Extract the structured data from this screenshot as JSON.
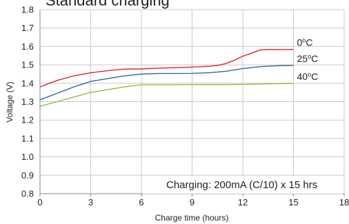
{
  "chart_data": {
    "type": "line",
    "title": "Standard charging",
    "xlabel": "Charge time (hours)",
    "ylabel": "Voltage (V)",
    "xlim": [
      0,
      18
    ],
    "ylim": [
      0.8,
      1.8
    ],
    "xticks": [
      0,
      3,
      6,
      9,
      12,
      15,
      18
    ],
    "yticks": [
      0.8,
      0.9,
      1.0,
      1.1,
      1.2,
      1.3,
      1.4,
      1.5,
      1.6,
      1.7,
      1.8
    ],
    "grid": true,
    "annotation": "Charging: 200mA (C/10) x 15 hrs",
    "colors": {
      "0": "#d9252a",
      "25": "#2f6a96",
      "40": "#8cbf3f",
      "grid": "#c8c8c8",
      "axis": "#888888"
    },
    "series": [
      {
        "name": "0°C",
        "label_main": "0",
        "label_unit": "C",
        "color": "#d9252a",
        "x": [
          0,
          1,
          2,
          3,
          4,
          5,
          6,
          7,
          8,
          9,
          10,
          10.5,
          11,
          11.5,
          12,
          12.5,
          13,
          13.5,
          14,
          15
        ],
        "y": [
          1.38,
          1.415,
          1.44,
          1.457,
          1.468,
          1.477,
          1.478,
          1.482,
          1.485,
          1.488,
          1.492,
          1.497,
          1.507,
          1.525,
          1.547,
          1.563,
          1.58,
          1.584,
          1.583,
          1.584
        ]
      },
      {
        "name": "25°C",
        "label_main": "25",
        "label_unit": "C",
        "color": "#2f6a96",
        "x": [
          0,
          1,
          2,
          3,
          4,
          5,
          6,
          7,
          8,
          9,
          10,
          11,
          12,
          13,
          14,
          15
        ],
        "y": [
          1.31,
          1.345,
          1.38,
          1.41,
          1.425,
          1.44,
          1.45,
          1.453,
          1.453,
          1.454,
          1.457,
          1.465,
          1.48,
          1.49,
          1.495,
          1.497
        ]
      },
      {
        "name": "40°C",
        "label_main": "40",
        "label_unit": "C",
        "color": "#8cbf3f",
        "x": [
          0,
          1,
          2,
          3,
          4,
          5,
          6,
          7,
          8,
          9,
          10,
          11,
          12,
          13,
          14,
          15
        ],
        "y": [
          1.275,
          1.3,
          1.325,
          1.35,
          1.365,
          1.38,
          1.392,
          1.392,
          1.392,
          1.393,
          1.393,
          1.393,
          1.394,
          1.396,
          1.398,
          1.399
        ]
      }
    ]
  }
}
